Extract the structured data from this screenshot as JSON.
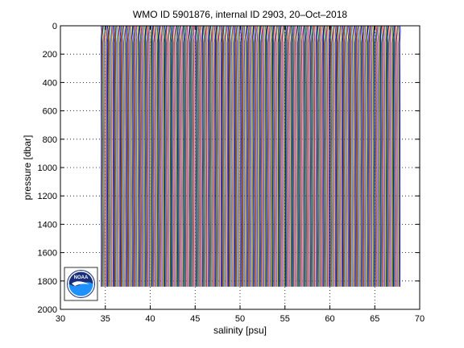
{
  "chart_data": {
    "type": "line",
    "title": "WMO ID 5901876, internal ID 2903, 20–Oct–2018",
    "xlabel": "salinity [psu]",
    "ylabel": "pressure [dbar]",
    "xlim": [
      30,
      70
    ],
    "ylim": [
      2000,
      0
    ],
    "y_reversed": true,
    "xticks": [
      30,
      35,
      40,
      45,
      50,
      55,
      60,
      65,
      70
    ],
    "yticks": [
      0,
      200,
      400,
      600,
      800,
      1000,
      1200,
      1400,
      1600,
      1800,
      2000
    ],
    "grid": true,
    "grid_style": "dotted",
    "profile_offset_step": 0.1,
    "profile_count": 330,
    "first_profile_x": 34.55,
    "last_profile_x": 67.8,
    "pressure_max": 1840,
    "series_colors": [
      "#0000ff",
      "#008000",
      "#ff0000",
      "#00bfbf",
      "#bf00bf",
      "#bfbf00",
      "#404040"
    ],
    "logo": "noaa-logo",
    "logo_text": "NOAA"
  }
}
